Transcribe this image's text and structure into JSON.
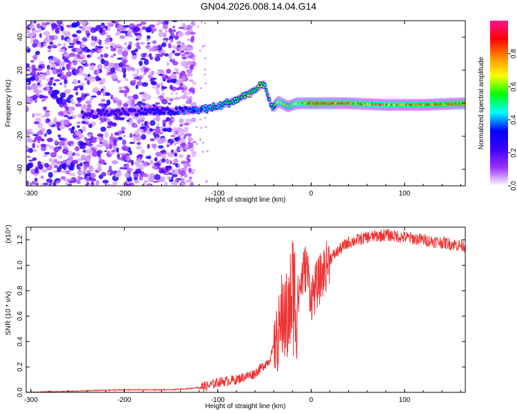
{
  "title": "GN04.2026.008.14.04.G14",
  "chart_data": [
    {
      "type": "heatmap",
      "xlabel": "Height of straight line (km)",
      "ylabel": "Frequency (Hz)",
      "xlim": [
        -305,
        165
      ],
      "ylim": [
        -50,
        50
      ],
      "xticks": [
        -300,
        -200,
        -100,
        0,
        100
      ],
      "yticks": [
        -40,
        -20,
        0,
        20,
        40
      ],
      "colorbar": {
        "label": "Normalized spectral amplitude",
        "range": [
          0,
          1
        ],
        "ticks": [
          "0.0",
          "0.2",
          "0.4",
          "0.6",
          "0.8"
        ],
        "colors": [
          "#ffffff",
          "#9b30ff",
          "#3c00ff",
          "#0000ff",
          "#00ffff",
          "#00ff00",
          "#ffff00",
          "#ff8c00",
          "#ff0000",
          "#ff1493"
        ]
      },
      "ridge": {
        "x": [
          -245,
          -200,
          -150,
          -120,
          -100,
          -80,
          -60,
          -50,
          -42,
          -35,
          -25,
          -15,
          0,
          40,
          80,
          120,
          165
        ],
        "freq": [
          -7,
          -5,
          -5,
          -4,
          -2,
          2,
          8,
          12,
          -3,
          1,
          -2,
          0,
          0,
          0,
          -1,
          -1,
          0
        ],
        "amplitude": [
          0.3,
          0.3,
          0.35,
          0.45,
          0.55,
          0.6,
          0.65,
          0.6,
          0.5,
          0.8,
          0.75,
          0.8,
          0.95,
          0.9,
          0.85,
          0.9,
          0.95
        ]
      }
    },
    {
      "type": "line",
      "xlabel": "Height of straight line (km)",
      "ylabel": "SNR (10 * v/v)",
      "y_scale_label": "(x10⁴)",
      "xlim": [
        -305,
        165
      ],
      "ylim": [
        0,
        1.3
      ],
      "xticks": [
        -300,
        -200,
        -100,
        0,
        100
      ],
      "yticks": [
        "0.0",
        "0.2",
        "0.4",
        "0.6",
        "0.8",
        "1.0",
        "1.2"
      ],
      "color": "#ee3333",
      "x": [
        -305,
        -250,
        -200,
        -150,
        -130,
        -110,
        -100,
        -80,
        -60,
        -45,
        -35,
        -30,
        -25,
        -20,
        -15,
        -10,
        -5,
        0,
        10,
        20,
        30,
        40,
        60,
        80,
        100,
        120,
        140,
        165
      ],
      "y": [
        0.0,
        0.01,
        0.02,
        0.02,
        0.03,
        0.05,
        0.08,
        0.1,
        0.15,
        0.25,
        0.45,
        0.65,
        0.55,
        0.8,
        0.7,
        0.9,
        1.0,
        0.75,
        0.9,
        1.05,
        1.12,
        1.18,
        1.22,
        1.24,
        1.22,
        1.2,
        1.18,
        1.15
      ]
    }
  ]
}
